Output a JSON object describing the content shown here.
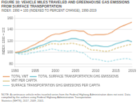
{
  "chart_data": {
    "type": "line",
    "title": "FIGURE 10: VEHICLE MILES TRAVELED AND GREENHOUSE GAS EMISSIONS FROM SURFACE TRANSPORTATION",
    "subtitle": "INDEX: 1990 = 100 (INDEXED TO PERCENT CHANGE), 1990-2019",
    "note": "NOTE: A continuous vehicle miles traveled series from the Federal Highway Administration does not exist. Data compiled by the authors using Federal Highway Administration Transportation\nStatistics (NHTS), 2017, 2009, 2001.",
    "ylabel": "INDEX: 1990 = 100",
    "x": [
      1990,
      1991,
      1992,
      1993,
      1994,
      1995,
      1996,
      1997,
      1998,
      1999,
      2000,
      2001,
      2002,
      2003,
      2004,
      2005,
      2006,
      2007,
      2008,
      2009,
      2010,
      2011,
      2012,
      2013,
      2014,
      2015,
      2016,
      2017,
      2018,
      2019
    ],
    "series": [
      {
        "name": "TOTAL VMT",
        "color": "#e8955a",
        "line_style": "solid",
        "values": [
          100,
          101,
          104,
          107,
          111,
          114,
          118,
          121,
          126,
          130,
          132,
          132,
          134,
          136,
          138,
          138,
          137,
          137,
          132,
          130,
          131,
          131,
          131,
          132,
          135,
          140,
          144,
          147,
          150,
          153
        ]
      },
      {
        "name": "TOTAL SURFACE TRANSPORTATION GHG EMISSIONS",
        "color": "#5ab8c8",
        "line_style": "solid",
        "values": [
          100,
          99,
          101,
          103,
          106,
          108,
          111,
          113,
          116,
          119,
          120,
          119,
          121,
          122,
          124,
          124,
          122,
          121,
          115,
          111,
          112,
          111,
          110,
          110,
          112,
          115,
          117,
          119,
          121,
          118
        ]
      },
      {
        "name": "VMT PER CAPITA",
        "color": "#c8a84b",
        "line_style": "dashed",
        "values": [
          100,
          99,
          100,
          102,
          104,
          106,
          108,
          110,
          113,
          115,
          115,
          114,
          115,
          115,
          116,
          115,
          113,
          112,
          107,
          104,
          104,
          103,
          102,
          102,
          104,
          107,
          109,
          111,
          113,
          114
        ]
      },
      {
        "name": "SURFACE TRANSPORTATION GHG EMISSIONS PER CAPITA",
        "color": "#7eccd8",
        "line_style": "dashed",
        "values": [
          100,
          97,
          97,
          97,
          99,
          100,
          102,
          103,
          104,
          106,
          105,
          103,
          103,
          102,
          103,
          103,
          100,
          99,
          93,
          88,
          88,
          87,
          85,
          84,
          85,
          87,
          88,
          89,
          89,
          87
        ]
      }
    ],
    "xlim": [
      1990,
      2019
    ],
    "xticks": [
      1990,
      1995,
      2000,
      2005,
      2010,
      2015,
      2019
    ],
    "ylim": [
      75,
      165
    ],
    "yticks": [
      80,
      100,
      120,
      140,
      160
    ],
    "grid": "y",
    "legend": "bottom"
  }
}
